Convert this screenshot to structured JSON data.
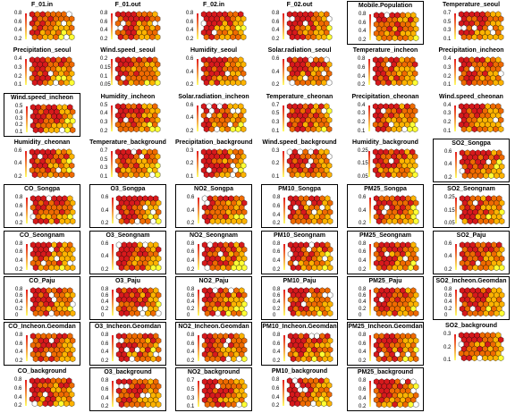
{
  "figure": {
    "layout": {
      "rows": 9,
      "cols": 6
    },
    "colors": {
      "high": "#d7191c",
      "mid_high": "#ef6a00",
      "mid": "#ffb300",
      "low": "#ffff33",
      "empty": "#ffffff",
      "border": "#000000",
      "colorbar_low": "#ffff66",
      "colorbar_high": "#e31a1c"
    }
  },
  "chart_data": [
    {
      "type": "heatmap",
      "title": "F_01.in",
      "ticks": [
        "0.8",
        "0.6",
        "0.4",
        "0.2"
      ],
      "boxed": false,
      "seed": 1
    },
    {
      "type": "heatmap",
      "title": "F_01.out",
      "ticks": [
        "0.8",
        "0.6",
        "0.4",
        "0.2"
      ],
      "boxed": false,
      "seed": 2
    },
    {
      "type": "heatmap",
      "title": "F_02.in",
      "ticks": [
        "0.8",
        "0.6",
        "0.4",
        "0.2"
      ],
      "boxed": false,
      "seed": 3
    },
    {
      "type": "heatmap",
      "title": "F_02.out",
      "ticks": [
        "0.8",
        "0.6",
        "0.4",
        "0.2"
      ],
      "boxed": false,
      "seed": 4
    },
    {
      "type": "heatmap",
      "title": "Mobile.Population",
      "ticks": [
        "0.8",
        "0.6",
        "0.4",
        "0.2"
      ],
      "boxed": true,
      "seed": 5
    },
    {
      "type": "heatmap",
      "title": "Temperature_seoul",
      "ticks": [
        "0.7",
        "0.5",
        "0.3",
        "0.1"
      ],
      "boxed": false,
      "seed": 6
    },
    {
      "type": "heatmap",
      "title": "Precipitation_seoul",
      "ticks": [
        "0.4",
        "0.3",
        "0.2",
        "0.1"
      ],
      "boxed": false,
      "seed": 7
    },
    {
      "type": "heatmap",
      "title": "Wind.speed_seoul",
      "ticks": [
        "0.2",
        "0.15",
        "0.1",
        "0.05"
      ],
      "boxed": false,
      "seed": 8
    },
    {
      "type": "heatmap",
      "title": "Humidity_seoul",
      "ticks": [
        "0.6",
        "0.4",
        "0.2"
      ],
      "boxed": false,
      "seed": 9
    },
    {
      "type": "heatmap",
      "title": "Solar.radiation_seoul",
      "ticks": [
        "0.6",
        "0.4",
        "0.2"
      ],
      "boxed": false,
      "seed": 10
    },
    {
      "type": "heatmap",
      "title": "Temperature_incheon",
      "ticks": [
        "0.8",
        "0.6",
        "0.4",
        "0.2"
      ],
      "boxed": false,
      "seed": 11
    },
    {
      "type": "heatmap",
      "title": "Precipitation_incheon",
      "ticks": [
        "0.4",
        "0.3",
        "0.2",
        "0.1"
      ],
      "boxed": false,
      "seed": 12
    },
    {
      "type": "heatmap",
      "title": "Wind.speed_incheon",
      "ticks": [
        "0.5",
        "0.4",
        "0.3",
        "0.2",
        "0.1"
      ],
      "boxed": true,
      "seed": 13
    },
    {
      "type": "heatmap",
      "title": "Humidity_incheon",
      "ticks": [
        "0.5",
        "0.4",
        "0.3",
        "0.2"
      ],
      "boxed": false,
      "seed": 14
    },
    {
      "type": "heatmap",
      "title": "Solar.radiation_incheon",
      "ticks": [
        "0.6",
        "0.4",
        "0.2"
      ],
      "boxed": false,
      "seed": 15
    },
    {
      "type": "heatmap",
      "title": "Temperature_cheonan",
      "ticks": [
        "0.7",
        "0.5",
        "0.3",
        "0.1"
      ],
      "boxed": false,
      "seed": 16
    },
    {
      "type": "heatmap",
      "title": "Precipitation_cheonan",
      "ticks": [
        "0.4",
        "0.3",
        "0.2",
        "0.1"
      ],
      "boxed": false,
      "seed": 17
    },
    {
      "type": "heatmap",
      "title": "Wind.speed_cheonan",
      "ticks": [
        "0.4",
        "0.3",
        "0.2",
        "0.1"
      ],
      "boxed": false,
      "seed": 18
    },
    {
      "type": "heatmap",
      "title": "Humidity_cheonan",
      "ticks": [
        "0.6",
        "0.4",
        "0.2"
      ],
      "boxed": false,
      "seed": 19
    },
    {
      "type": "heatmap",
      "title": "Temperature_background",
      "ticks": [
        "0.7",
        "0.5",
        "0.3",
        "0.1"
      ],
      "boxed": false,
      "seed": 20
    },
    {
      "type": "heatmap",
      "title": "Precipitation_background",
      "ticks": [
        "0.3",
        "0.2",
        "0.1"
      ],
      "boxed": false,
      "seed": 21
    },
    {
      "type": "heatmap",
      "title": "Wind.speed_background",
      "ticks": [
        "0.3",
        "0.2",
        "0.1"
      ],
      "boxed": false,
      "seed": 22
    },
    {
      "type": "heatmap",
      "title": "Humidity_background",
      "ticks": [
        "0.25",
        "0.15",
        "0.05"
      ],
      "boxed": false,
      "seed": 23
    },
    {
      "type": "heatmap",
      "title": "SO2_Songpa",
      "ticks": [
        "0.6",
        "0.4",
        "0.2"
      ],
      "boxed": true,
      "seed": 24
    },
    {
      "type": "heatmap",
      "title": "CO_Songpa",
      "ticks": [
        "0.8",
        "0.6",
        "0.4",
        "0.2"
      ],
      "boxed": true,
      "seed": 25
    },
    {
      "type": "heatmap",
      "title": "O3_Songpa",
      "ticks": [
        "0.6",
        "0.4",
        "0.2"
      ],
      "boxed": true,
      "seed": 26
    },
    {
      "type": "heatmap",
      "title": "NO2_Songpa",
      "ticks": [
        "0.6",
        "0.4",
        "0.2"
      ],
      "boxed": true,
      "seed": 27
    },
    {
      "type": "heatmap",
      "title": "PM10_Songpa",
      "ticks": [
        "0.8",
        "0.6",
        "0.4",
        "0.2"
      ],
      "boxed": true,
      "seed": 28
    },
    {
      "type": "heatmap",
      "title": "PM25_Songpa",
      "ticks": [
        "0.6",
        "0.4",
        "0.2"
      ],
      "boxed": true,
      "seed": 29
    },
    {
      "type": "heatmap",
      "title": "SO2_Seongnam",
      "ticks": [
        "0.25",
        "0.15",
        "0.05"
      ],
      "boxed": true,
      "seed": 30
    },
    {
      "type": "heatmap",
      "title": "CO_Seongnam",
      "ticks": [
        "0.8",
        "0.6",
        "0.4",
        "0.2"
      ],
      "boxed": true,
      "seed": 31
    },
    {
      "type": "heatmap",
      "title": "O3_Seongnam",
      "ticks": [
        "0.6",
        "0.4",
        "0.2"
      ],
      "boxed": true,
      "seed": 32
    },
    {
      "type": "heatmap",
      "title": "NO2_Seongnam",
      "ticks": [
        "0.8",
        "0.6",
        "0.4",
        "0.2"
      ],
      "boxed": true,
      "seed": 33
    },
    {
      "type": "heatmap",
      "title": "PM10_Seongnam",
      "ticks": [
        "0.8",
        "0.6",
        "0.4",
        "0.2"
      ],
      "boxed": true,
      "seed": 34
    },
    {
      "type": "heatmap",
      "title": "PM25_Seongnam",
      "ticks": [
        "0.8",
        "0.6",
        "0.4",
        "0.2"
      ],
      "boxed": true,
      "seed": 35
    },
    {
      "type": "heatmap",
      "title": "SO2_Paju",
      "ticks": [
        "0.6",
        "0.4",
        "0.2"
      ],
      "boxed": true,
      "seed": 36
    },
    {
      "type": "heatmap",
      "title": "CO_Paju",
      "ticks": [
        "0.8",
        "0.6",
        "0.4",
        "0.2",
        "0"
      ],
      "boxed": true,
      "seed": 37
    },
    {
      "type": "heatmap",
      "title": "O3_Paju",
      "ticks": [
        "0.8",
        "0.6",
        "0.4",
        "0.2",
        "0"
      ],
      "boxed": true,
      "seed": 38
    },
    {
      "type": "heatmap",
      "title": "NO2_Paju",
      "ticks": [
        "0.8",
        "0.6",
        "0.4",
        "0.2",
        "0"
      ],
      "boxed": true,
      "seed": 39
    },
    {
      "type": "heatmap",
      "title": "PM10_Paju",
      "ticks": [
        "0.8",
        "0.6",
        "0.4",
        "0.2",
        "0"
      ],
      "boxed": true,
      "seed": 40
    },
    {
      "type": "heatmap",
      "title": "PM25_Paju",
      "ticks": [
        "0.8",
        "0.6",
        "0.4",
        "0.2",
        "0"
      ],
      "boxed": true,
      "seed": 41
    },
    {
      "type": "heatmap",
      "title": "SO2_Incheon.Geomdan",
      "ticks": [
        "0.8",
        "0.6",
        "0.4",
        "0.2",
        "0"
      ],
      "boxed": true,
      "seed": 42
    },
    {
      "type": "heatmap",
      "title": "CO_Incheon.Geomdan",
      "ticks": [
        "0.8",
        "0.6",
        "0.4",
        "0.2"
      ],
      "boxed": true,
      "seed": 43
    },
    {
      "type": "heatmap",
      "title": "O3_Incheon.Geomdan",
      "ticks": [
        "0.8",
        "0.6",
        "0.4",
        "0.2"
      ],
      "boxed": true,
      "seed": 44
    },
    {
      "type": "heatmap",
      "title": "NO2_Incheon.Geomdan",
      "ticks": [
        "0.8",
        "0.6",
        "0.4",
        "0.2"
      ],
      "boxed": true,
      "seed": 45
    },
    {
      "type": "heatmap",
      "title": "PM10_Incheon.Geomdan",
      "ticks": [
        "0.8",
        "0.6",
        "0.4",
        "0.2"
      ],
      "boxed": true,
      "seed": 46
    },
    {
      "type": "heatmap",
      "title": "PM25_Incheon.Geomdan",
      "ticks": [
        "0.8",
        "0.6",
        "0.4",
        "0.2"
      ],
      "boxed": true,
      "seed": 47
    },
    {
      "type": "heatmap",
      "title": "SO2_background",
      "ticks": [
        "0.3",
        "0.2",
        "0.1"
      ],
      "boxed": false,
      "seed": 48
    },
    {
      "type": "heatmap",
      "title": "CO_background",
      "ticks": [
        "0.8",
        "0.6",
        "0.4",
        "0.2"
      ],
      "boxed": false,
      "seed": 49
    },
    {
      "type": "heatmap",
      "title": "O3_background",
      "ticks": [
        "0.8",
        "0.6",
        "0.4",
        "0.2"
      ],
      "boxed": true,
      "seed": 50
    },
    {
      "type": "heatmap",
      "title": "NO2_background",
      "ticks": [
        "0.7",
        "0.5",
        "0.3",
        "0.1"
      ],
      "boxed": true,
      "seed": 51
    },
    {
      "type": "heatmap",
      "title": "PM10_background",
      "ticks": [
        "0.8",
        "0.6",
        "0.4",
        "0.2"
      ],
      "boxed": false,
      "seed": 52
    },
    {
      "type": "heatmap",
      "title": "PM25_background",
      "ticks": [
        "0.8",
        "0.6",
        "0.4",
        "0.2"
      ],
      "boxed": true,
      "seed": 53
    }
  ]
}
